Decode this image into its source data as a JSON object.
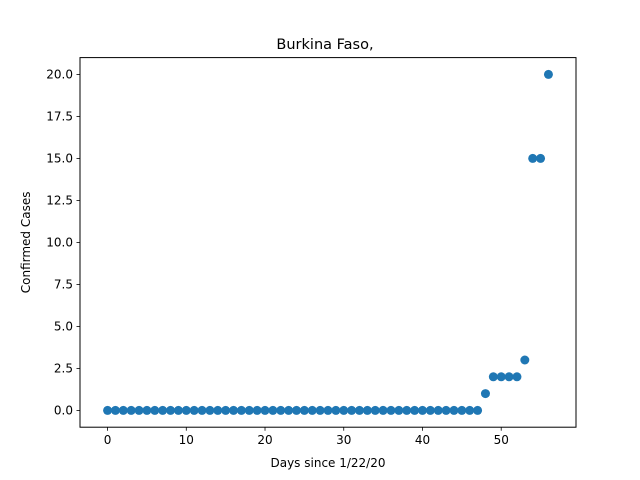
{
  "chart_data": {
    "type": "scatter",
    "title": "Burkina Faso,",
    "xlabel": "Days since 1/22/20",
    "ylabel": "Confirmed Cases",
    "xlim": [
      -3.5,
      59.5
    ],
    "ylim": [
      -1.0,
      21.0
    ],
    "xticks": [
      0,
      10,
      20,
      30,
      40,
      50
    ],
    "yticks": [
      0.0,
      2.5,
      5.0,
      7.5,
      10.0,
      12.5,
      15.0,
      17.5,
      20.0
    ],
    "xtick_labels": [
      "0",
      "10",
      "20",
      "30",
      "40",
      "50"
    ],
    "ytick_labels": [
      "0.0",
      "2.5",
      "5.0",
      "7.5",
      "10.0",
      "12.5",
      "15.0",
      "17.5",
      "20.0"
    ],
    "grid": false,
    "marker_color": "#1f77b4",
    "x": [
      0,
      1,
      2,
      3,
      4,
      5,
      6,
      7,
      8,
      9,
      10,
      11,
      12,
      13,
      14,
      15,
      16,
      17,
      18,
      19,
      20,
      21,
      22,
      23,
      24,
      25,
      26,
      27,
      28,
      29,
      30,
      31,
      32,
      33,
      34,
      35,
      36,
      37,
      38,
      39,
      40,
      41,
      42,
      43,
      44,
      45,
      46,
      47,
      48,
      49,
      50,
      51,
      52,
      53,
      54,
      55,
      56
    ],
    "y": [
      0,
      0,
      0,
      0,
      0,
      0,
      0,
      0,
      0,
      0,
      0,
      0,
      0,
      0,
      0,
      0,
      0,
      0,
      0,
      0,
      0,
      0,
      0,
      0,
      0,
      0,
      0,
      0,
      0,
      0,
      0,
      0,
      0,
      0,
      0,
      0,
      0,
      0,
      0,
      0,
      0,
      0,
      0,
      0,
      0,
      0,
      0,
      0,
      1,
      2,
      2,
      2,
      2,
      3,
      15,
      15,
      20
    ]
  }
}
